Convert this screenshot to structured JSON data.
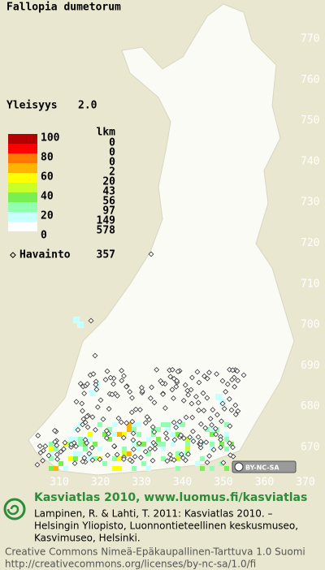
{
  "title": "Fallopia dumetorum",
  "frequency": {
    "label": "Yleisyys",
    "value": "2.0"
  },
  "legend": {
    "count_header": "lkm",
    "scale_labels": [
      "100",
      "80",
      "60",
      "40",
      "20",
      "0"
    ],
    "classes": [
      {
        "color": "#b40000",
        "count": "0"
      },
      {
        "color": "#ff0000",
        "count": "0"
      },
      {
        "color": "#ff7800",
        "count": "0"
      },
      {
        "color": "#ffb400",
        "count": "2"
      },
      {
        "color": "#ffff00",
        "count": "20"
      },
      {
        "color": "#c8ff28",
        "count": "43"
      },
      {
        "color": "#78f050",
        "count": "56"
      },
      {
        "color": "#90ffb0",
        "count": "97"
      },
      {
        "color": "#c8ffff",
        "count": "149"
      },
      {
        "color": "#ffffff",
        "count": "578"
      }
    ],
    "observations": {
      "label": "Havainto",
      "count": "357"
    }
  },
  "grid_labels": {
    "north": [
      "770",
      "760",
      "750",
      "740",
      "730",
      "720",
      "710",
      "700",
      "690",
      "680",
      "670"
    ],
    "east": [
      "310",
      "320",
      "330",
      "340",
      "350",
      "360",
      "370"
    ]
  },
  "badge": "BY-NC-SA",
  "footer": {
    "heading": "Kasviatlas 2010, www.luomus.fi/kasviatlas",
    "citation": [
      "Lampinen, R. & Lahti, T. 2011: Kasviatlas 2010. –",
      "Helsingin Yliopisto, Luonnontieteellinen keskusmuseo,",
      "Kasvimuseo, Helsinki."
    ],
    "license": [
      "Creative Commons Nimeä-Epäkaupallinen-Tarttuva 1.0 Suomi",
      "http://creativecommons.org/licenses/by-nc-sa/1.0/fi"
    ]
  }
}
